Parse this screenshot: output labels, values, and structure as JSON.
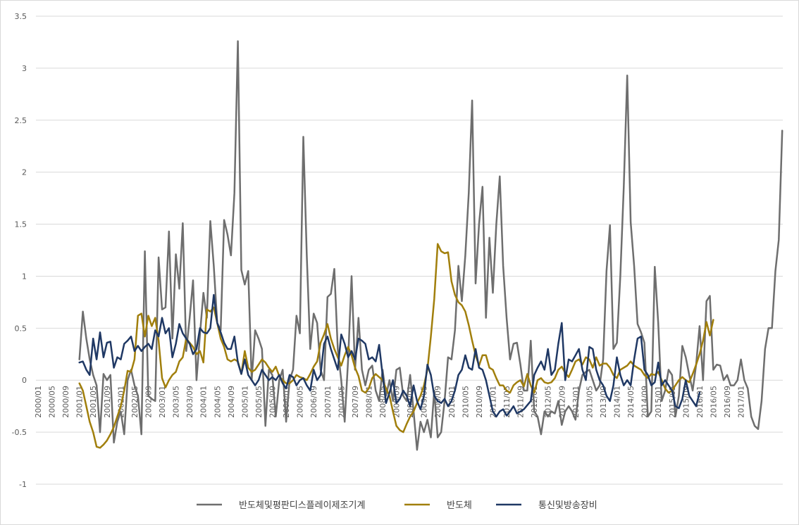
{
  "chart_data": {
    "type": "line",
    "title": "",
    "xlabel": "",
    "ylabel": "",
    "ylim": [
      -1,
      3.5
    ],
    "yticks": [
      "-1",
      "-0.5",
      "0",
      "0.5",
      "1",
      "1.5",
      "2",
      "2.5",
      "3",
      "3.5"
    ],
    "x_tick_labels": [
      "2000/01",
      "2000/05",
      "2000/09",
      "2001/01",
      "2001/05",
      "2001/09",
      "2002/01",
      "2002/05",
      "2002/09",
      "2003/01",
      "2003/05",
      "2003/09",
      "2004/01",
      "2004/05",
      "2004/09",
      "2005/01",
      "2005/05",
      "2005/09",
      "2006/01",
      "2006/05",
      "2006/09",
      "2007/01",
      "2007/05",
      "2007/09",
      "2008/01",
      "2008/05",
      "2008/09",
      "2009/01",
      "2009/05",
      "2009/09",
      "2010/01",
      "2010/05",
      "2010/09",
      "2011/01",
      "2011/05",
      "2011/09",
      "2012/01",
      "2012/05",
      "2012/09",
      "2013/01",
      "2013/05",
      "2013/09",
      "2014/01",
      "2014/05",
      "2014/09",
      "2015/01",
      "2015/05",
      "2015/09",
      "2016/01",
      "2016/05",
      "2016/09",
      "2017/01"
    ],
    "grid": true,
    "legend_position": "bottom",
    "series": [
      {
        "name": "반도체및평판디스플레이제조기계",
        "color": "#6e6e6e",
        "start_index": 12,
        "values": [
          0.2,
          0.66,
          0.4,
          0.2,
          0.05,
          -0.05,
          -0.5,
          0.06,
          0,
          0.05,
          -0.6,
          -0.4,
          -0.3,
          -0.52,
          0,
          0.1,
          -0.05,
          -0.15,
          -0.52,
          1.24,
          -0.15,
          -0.18,
          -0.2,
          1.18,
          0.68,
          0.7,
          1.43,
          0.4,
          1.21,
          0.88,
          1.51,
          0.28,
          0.6,
          0.96,
          0,
          0.44,
          0.84,
          0.6,
          1.53,
          1.1,
          0.55,
          0.48,
          1.54,
          1.4,
          1.2,
          1.8,
          3.26,
          1.06,
          0.92,
          1.05,
          0,
          0.48,
          0.4,
          0.3,
          -0.44,
          0.1,
          0.05,
          -0.35,
          0,
          0.1,
          -0.4,
          0,
          0.1,
          0.62,
          0.45,
          2.34,
          1.2,
          0.3,
          0.64,
          0.55,
          0.1,
          0,
          0.8,
          0.83,
          1.07,
          0.3,
          0,
          -0.4,
          0.2,
          1,
          0.1,
          0.6,
          0.1,
          -0.05,
          0.1,
          0.14,
          -0.1,
          -0.2,
          0.1,
          -0.15,
          0,
          -0.2,
          0.1,
          0.12,
          -0.15,
          -0.2,
          0.05,
          -0.3,
          -0.67,
          -0.4,
          -0.5,
          -0.38,
          -0.55,
          -0.1,
          -0.55,
          -0.5,
          -0.2,
          0.22,
          0.2,
          0.48,
          1.1,
          0.76,
          1.2,
          1.8,
          2.69,
          0.93,
          1.5,
          1.86,
          0.6,
          1.37,
          0.84,
          1.5,
          1.96,
          1.1,
          0.6,
          0.2,
          0.35,
          0.36,
          0.15,
          -0.1,
          -0.1,
          0.38,
          -0.3,
          -0.35,
          -0.52,
          -0.3,
          -0.35,
          -0.3,
          -0.32,
          -0.2,
          -0.43,
          -0.3,
          -0.25,
          -0.3,
          -0.38,
          -0.1,
          0.05,
          0.08,
          0.1,
          0,
          -0.1,
          -0.05,
          0.2,
          1.05,
          1.49,
          0.3,
          0.36,
          1,
          1.86,
          2.93,
          1.52,
          1.1,
          0.54,
          0.46,
          0.36,
          -0.35,
          -0.3,
          1.09,
          0.55,
          -0.2,
          -0.1,
          0.1,
          0.05,
          -0.35,
          -0.15,
          0.33,
          0.22,
          0.05,
          -0.1,
          0.15,
          0.52,
          0,
          0.76,
          0.81,
          0.1,
          0.15,
          0.14,
          0,
          0.05,
          -0.05,
          -0.05,
          0,
          0.2,
          0,
          -0.08,
          -0.35,
          -0.44,
          -0.47,
          -0.2,
          0.3,
          0.5,
          0.5,
          1.05,
          1.35,
          2.4
        ]
      },
      {
        "name": "반도체",
        "color": "#a17f0c",
        "start_index": 12,
        "values": [
          -0.03,
          -0.1,
          -0.25,
          -0.4,
          -0.5,
          -0.64,
          -0.65,
          -0.62,
          -0.58,
          -0.52,
          -0.45,
          -0.35,
          -0.25,
          -0.1,
          0.09,
          0.08,
          0.2,
          0.62,
          0.64,
          0.42,
          0.62,
          0.52,
          0.6,
          0.38,
          0.02,
          -0.07,
          0,
          0.05,
          0.08,
          0.18,
          0.22,
          0.4,
          0.36,
          0.32,
          0.25,
          0.28,
          0.17,
          0.68,
          0.66,
          0.7,
          0.55,
          0.4,
          0.32,
          0.2,
          0.18,
          0.2,
          0.18,
          0.06,
          0.28,
          0.12,
          0.08,
          0.1,
          0.15,
          0.2,
          0.17,
          0.12,
          0.08,
          0.13,
          0.04,
          0,
          -0.03,
          -0.03,
          0,
          0.05,
          0.03,
          0.02,
          0,
          0.06,
          0.13,
          0.18,
          0.36,
          0.44,
          0.54,
          0.4,
          0.3,
          0.22,
          0.14,
          0.24,
          0.32,
          0.24,
          0.12,
          0.04,
          -0.1,
          -0.12,
          -0.08,
          0.02,
          0.06,
          0.03,
          0,
          -0.08,
          -0.15,
          -0.3,
          -0.44,
          -0.48,
          -0.5,
          -0.42,
          -0.35,
          -0.3,
          -0.22,
          -0.15,
          -0.05,
          0.1,
          0.42,
          0.78,
          1.31,
          1.24,
          1.22,
          1.23,
          0.95,
          0.82,
          0.75,
          0.72,
          0.66,
          0.53,
          0.38,
          0.24,
          0.14,
          0.24,
          0.24,
          0.12,
          0.1,
          0.02,
          -0.05,
          -0.05,
          -0.1,
          -0.12,
          -0.05,
          -0.02,
          0,
          -0.06,
          0.06,
          -0.05,
          -0.12,
          0,
          0.02,
          -0.02,
          -0.03,
          -0.02,
          0.02,
          0.1,
          0.13,
          0.07,
          0.03,
          0.1,
          0.18,
          0.2,
          0.15,
          0.22,
          0.2,
          0.12,
          0.22,
          0.14,
          0.16,
          0.16,
          0.12,
          0.05,
          0.02,
          0.1,
          0.12,
          0.14,
          0.18,
          0.14,
          0.12,
          0.1,
          0.05,
          0.02,
          0.06,
          0.05,
          0.08,
          0,
          -0.08,
          -0.12,
          -0.1,
          -0.05,
          0,
          0.03,
          0,
          -0.02,
          0.06,
          0.15,
          0.25,
          0.38,
          0.56,
          0.43,
          0.58
        ]
      },
      {
        "name": "통신및방송장비",
        "color": "#1f3864",
        "start_index": 12,
        "values": [
          0.17,
          0.18,
          0.1,
          0.05,
          0.4,
          0.2,
          0.46,
          0.22,
          0.36,
          0.37,
          0.12,
          0.22,
          0.2,
          0.35,
          0.38,
          0.42,
          0.28,
          0.33,
          0.28,
          0.32,
          0.35,
          0.3,
          0.48,
          0.42,
          0.6,
          0.45,
          0.5,
          0.22,
          0.35,
          0.54,
          0.45,
          0.4,
          0.35,
          0.25,
          0.3,
          0.5,
          0.46,
          0.45,
          0.5,
          0.82,
          0.55,
          0.46,
          0.36,
          0.3,
          0.3,
          0.42,
          0.17,
          0.06,
          0.2,
          0.05,
          0.0,
          -0.05,
          0.0,
          0.1,
          0.05,
          0.0,
          0.03,
          0.0,
          0.05,
          -0.03,
          -0.08,
          0.05,
          0.03,
          -0.05,
          0.0,
          0.02,
          -0.05,
          -0.1,
          0.1,
          0.0,
          0.05,
          0.35,
          0.42,
          0.3,
          0.2,
          0.1,
          0.44,
          0.35,
          0.22,
          0.28,
          0.2,
          0.4,
          0.38,
          0.35,
          0.2,
          0.22,
          0.18,
          0.34,
          0.05,
          -0.22,
          -0.12,
          0.0,
          -0.22,
          -0.18,
          -0.1,
          -0.15,
          -0.25,
          -0.05,
          -0.2,
          -0.28,
          -0.15,
          0.15,
          0.05,
          -0.15,
          -0.2,
          -0.22,
          -0.18,
          -0.25,
          -0.2,
          -0.1,
          0.05,
          0.1,
          0.24,
          0.12,
          0.1,
          0.3,
          0.12,
          0.1,
          0.0,
          -0.15,
          -0.3,
          -0.35,
          -0.3,
          -0.28,
          -0.34,
          -0.3,
          -0.25,
          -0.32,
          -0.3,
          -0.28,
          -0.24,
          -0.2,
          0.05,
          0.12,
          0.18,
          0.1,
          0.3,
          0.05,
          0.1,
          0.35,
          0.55,
          0.0,
          0.2,
          0.18,
          0.24,
          0.3,
          0.1,
          0.0,
          0.32,
          0.3,
          0.1,
          0.0,
          -0.05,
          -0.15,
          -0.2,
          -0.05,
          0.22,
          0.05,
          -0.05,
          0.0,
          -0.05,
          0.2,
          0.4,
          0.42,
          0.1,
          0.05,
          -0.05,
          -0.02,
          0.17,
          -0.05,
          0.0,
          -0.05,
          -0.1,
          -0.25,
          -0.27,
          -0.18,
          0.0,
          -0.15,
          -0.2,
          -0.25,
          -0.12
        ]
      }
    ]
  }
}
